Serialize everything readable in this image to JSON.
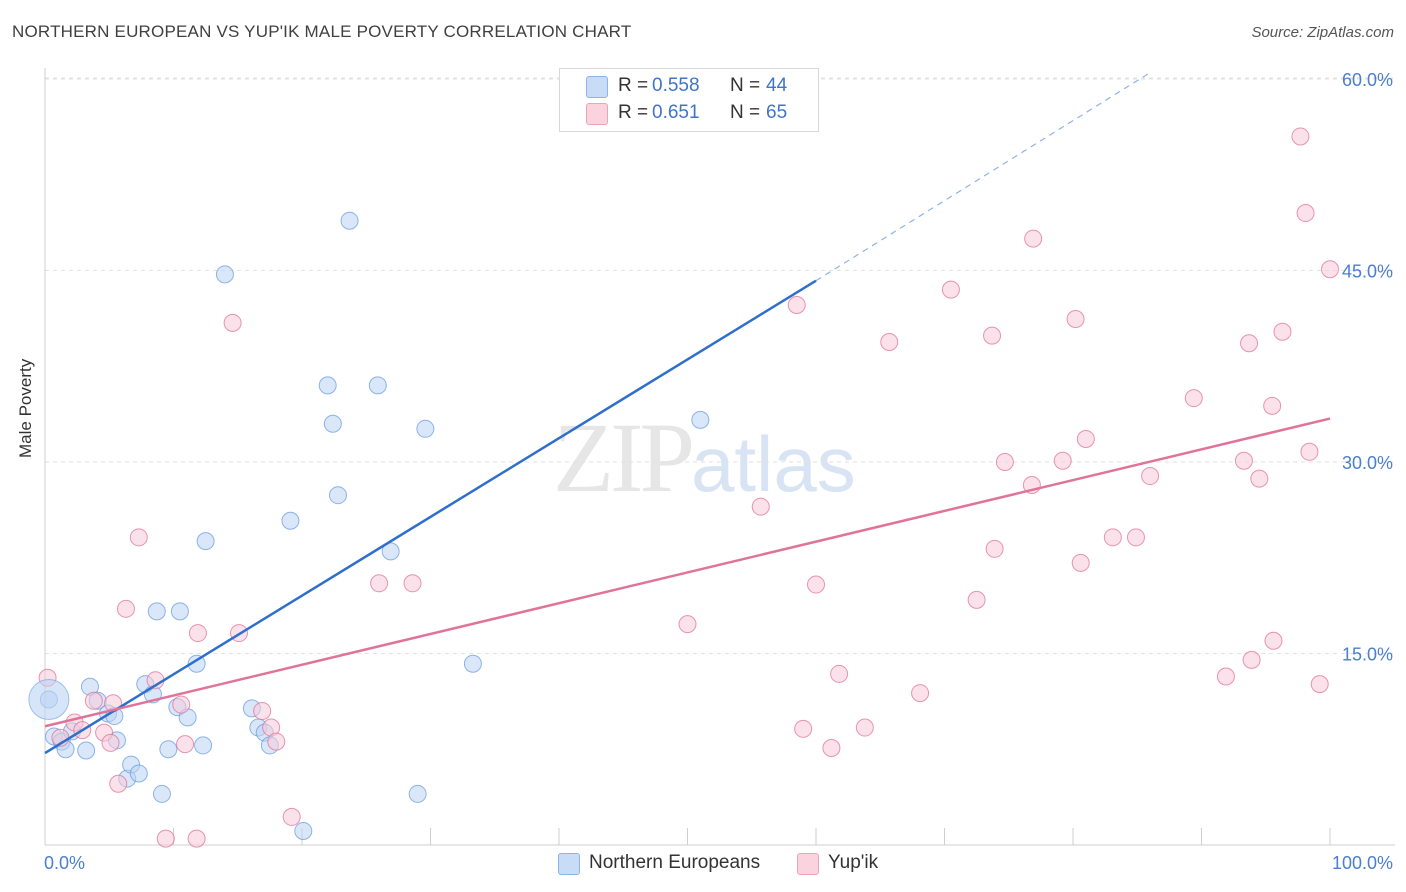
{
  "title": "NORTHERN EUROPEAN VS YUP'IK MALE POVERTY CORRELATION CHART",
  "source": "Source: ZipAtlas.com",
  "watermark": {
    "zip": "ZIP",
    "atlas": "atlas"
  },
  "legend": {
    "rows": [
      {
        "r_label": "R =",
        "r_value": "0.558",
        "n_label": "N =",
        "n_value": "44",
        "color": "#9dc0ef"
      },
      {
        "r_label": "R =",
        "r_value": "0.651",
        "n_label": "N =",
        "n_value": "65",
        "color": "#f5b8ca"
      }
    ]
  },
  "chart_data": {
    "type": "scatter",
    "title": "NORTHERN EUROPEAN VS YUP'IK MALE POVERTY CORRELATION CHART",
    "xlabel": "",
    "ylabel": "Male Poverty",
    "xlim": [
      0,
      100
    ],
    "ylim": [
      0,
      60
    ],
    "x_tick_labels": [
      {
        "value": 0,
        "label": "0.0%"
      },
      {
        "value": 100,
        "label": "100.0%"
      }
    ],
    "y_tick_labels": [
      {
        "value": 15,
        "label": "15.0%"
      },
      {
        "value": 30,
        "label": "30.0%"
      },
      {
        "value": 45,
        "label": "45.0%"
      },
      {
        "value": 60,
        "label": "60.0%"
      }
    ],
    "grid": true,
    "legend_position": "top-center",
    "series": [
      {
        "name": "Northern Europeans",
        "color": "#6a9de0",
        "fill": "#bcd4f4",
        "trend": {
          "x": [
            0,
            60
          ],
          "y": [
            7.2,
            44.2
          ],
          "extended_to": [
            86,
            60.5
          ]
        },
        "points": [
          [
            0.3,
            11.4
          ],
          [
            0.7,
            8.5
          ],
          [
            1.3,
            8.1
          ],
          [
            1.6,
            7.5
          ],
          [
            2.1,
            8.9
          ],
          [
            3.2,
            7.4
          ],
          [
            3.5,
            12.4
          ],
          [
            4.1,
            11.3
          ],
          [
            4.9,
            10.3
          ],
          [
            5.6,
            8.2
          ],
          [
            5.4,
            10.1
          ],
          [
            6.4,
            5.2
          ],
          [
            6.7,
            6.3
          ],
          [
            7.3,
            5.6
          ],
          [
            7.8,
            12.6
          ],
          [
            8.4,
            11.8
          ],
          [
            8.7,
            18.3
          ],
          [
            9.1,
            4.0
          ],
          [
            9.6,
            7.5
          ],
          [
            10.3,
            10.8
          ],
          [
            10.5,
            18.3
          ],
          [
            11.1,
            10.0
          ],
          [
            11.8,
            14.2
          ],
          [
            12.3,
            7.8
          ],
          [
            12.5,
            23.8
          ],
          [
            14.0,
            44.7
          ],
          [
            16.1,
            10.7
          ],
          [
            16.6,
            9.2
          ],
          [
            17.1,
            8.8
          ],
          [
            17.5,
            7.8
          ],
          [
            19.1,
            25.4
          ],
          [
            20.1,
            1.1
          ],
          [
            22.0,
            36.0
          ],
          [
            22.4,
            33.0
          ],
          [
            22.8,
            27.4
          ],
          [
            23.7,
            48.9
          ],
          [
            25.9,
            36.0
          ],
          [
            26.9,
            23.0
          ],
          [
            29.0,
            4.0
          ],
          [
            29.6,
            32.6
          ],
          [
            33.3,
            14.2
          ],
          [
            51.0,
            33.3
          ]
        ]
      },
      {
        "name": "Yup'ik",
        "color": "#e0739a",
        "fill": "#f8cad8",
        "trend": {
          "x": [
            0,
            100
          ],
          "y": [
            9.3,
            33.4
          ]
        },
        "points": [
          [
            0.2,
            13.1
          ],
          [
            1.2,
            8.4
          ],
          [
            2.3,
            9.6
          ],
          [
            2.9,
            9.0
          ],
          [
            3.8,
            11.3
          ],
          [
            4.6,
            8.8
          ],
          [
            5.1,
            8.0
          ],
          [
            5.3,
            11.1
          ],
          [
            5.7,
            4.8
          ],
          [
            6.3,
            18.5
          ],
          [
            7.3,
            24.1
          ],
          [
            8.6,
            12.9
          ],
          [
            9.4,
            0.5
          ],
          [
            10.6,
            11.0
          ],
          [
            10.9,
            7.9
          ],
          [
            11.8,
            0.5
          ],
          [
            11.9,
            16.6
          ],
          [
            14.6,
            40.9
          ],
          [
            15.1,
            16.6
          ],
          [
            16.9,
            10.5
          ],
          [
            17.6,
            9.2
          ],
          [
            18.0,
            8.1
          ],
          [
            19.2,
            2.2
          ],
          [
            26.0,
            20.5
          ],
          [
            28.6,
            20.5
          ],
          [
            50.0,
            17.3
          ],
          [
            55.7,
            26.5
          ],
          [
            58.5,
            42.3
          ],
          [
            59.0,
            9.1
          ],
          [
            60.0,
            20.4
          ],
          [
            61.2,
            7.6
          ],
          [
            61.8,
            13.4
          ],
          [
            63.8,
            9.2
          ],
          [
            65.7,
            39.4
          ],
          [
            68.1,
            11.9
          ],
          [
            70.5,
            43.5
          ],
          [
            72.5,
            19.2
          ],
          [
            73.7,
            39.9
          ],
          [
            73.9,
            23.2
          ],
          [
            74.7,
            30.0
          ],
          [
            76.8,
            28.2
          ],
          [
            76.9,
            47.5
          ],
          [
            79.2,
            30.1
          ],
          [
            80.2,
            41.2
          ],
          [
            80.6,
            22.1
          ],
          [
            81.0,
            31.8
          ],
          [
            83.1,
            24.1
          ],
          [
            84.9,
            24.1
          ],
          [
            86.0,
            28.9
          ],
          [
            89.4,
            35.0
          ],
          [
            91.9,
            13.2
          ],
          [
            93.3,
            30.1
          ],
          [
            93.7,
            39.3
          ],
          [
            93.9,
            14.5
          ],
          [
            94.5,
            28.7
          ],
          [
            95.5,
            34.4
          ],
          [
            95.6,
            16.0
          ],
          [
            96.3,
            40.2
          ],
          [
            97.7,
            55.5
          ],
          [
            98.1,
            49.5
          ],
          [
            98.4,
            30.8
          ],
          [
            99.2,
            12.6
          ],
          [
            100.0,
            45.1
          ]
        ]
      }
    ]
  }
}
